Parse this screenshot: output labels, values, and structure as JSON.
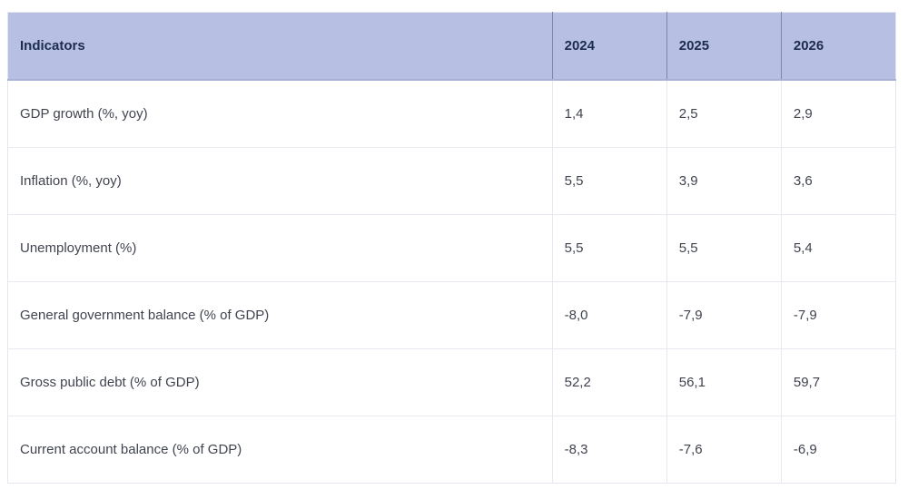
{
  "table": {
    "columns": [
      "Indicators",
      "2024",
      "2025",
      "2026"
    ],
    "rows": [
      {
        "label": "GDP growth (%, yoy)",
        "values": [
          "1,4",
          "2,5",
          "2,9"
        ]
      },
      {
        "label": "Inflation (%, yoy)",
        "values": [
          "5,5",
          "3,9",
          "3,6"
        ]
      },
      {
        "label": "Unemployment (%)",
        "values": [
          "5,5",
          "5,5",
          "5,4"
        ]
      },
      {
        "label": "General government balance (% of GDP)",
        "values": [
          "-8,0",
          "-7,9",
          "-7,9"
        ]
      },
      {
        "label": "Gross public debt (% of GDP)",
        "values": [
          "52,2",
          "56,1",
          "59,7"
        ]
      },
      {
        "label": "Current account balance (% of GDP)",
        "values": [
          "-8,3",
          "-7,6",
          "-6,9"
        ]
      }
    ],
    "colors": {
      "header_bg": "#b7c0e3",
      "header_text": "#1d2b50",
      "header_divider": "#7e88ac",
      "header_bottom": "#a8b2d8",
      "body_text": "#40444f",
      "grid_line": "#e7e9f1",
      "outer_border": "#e3e6ef"
    }
  }
}
